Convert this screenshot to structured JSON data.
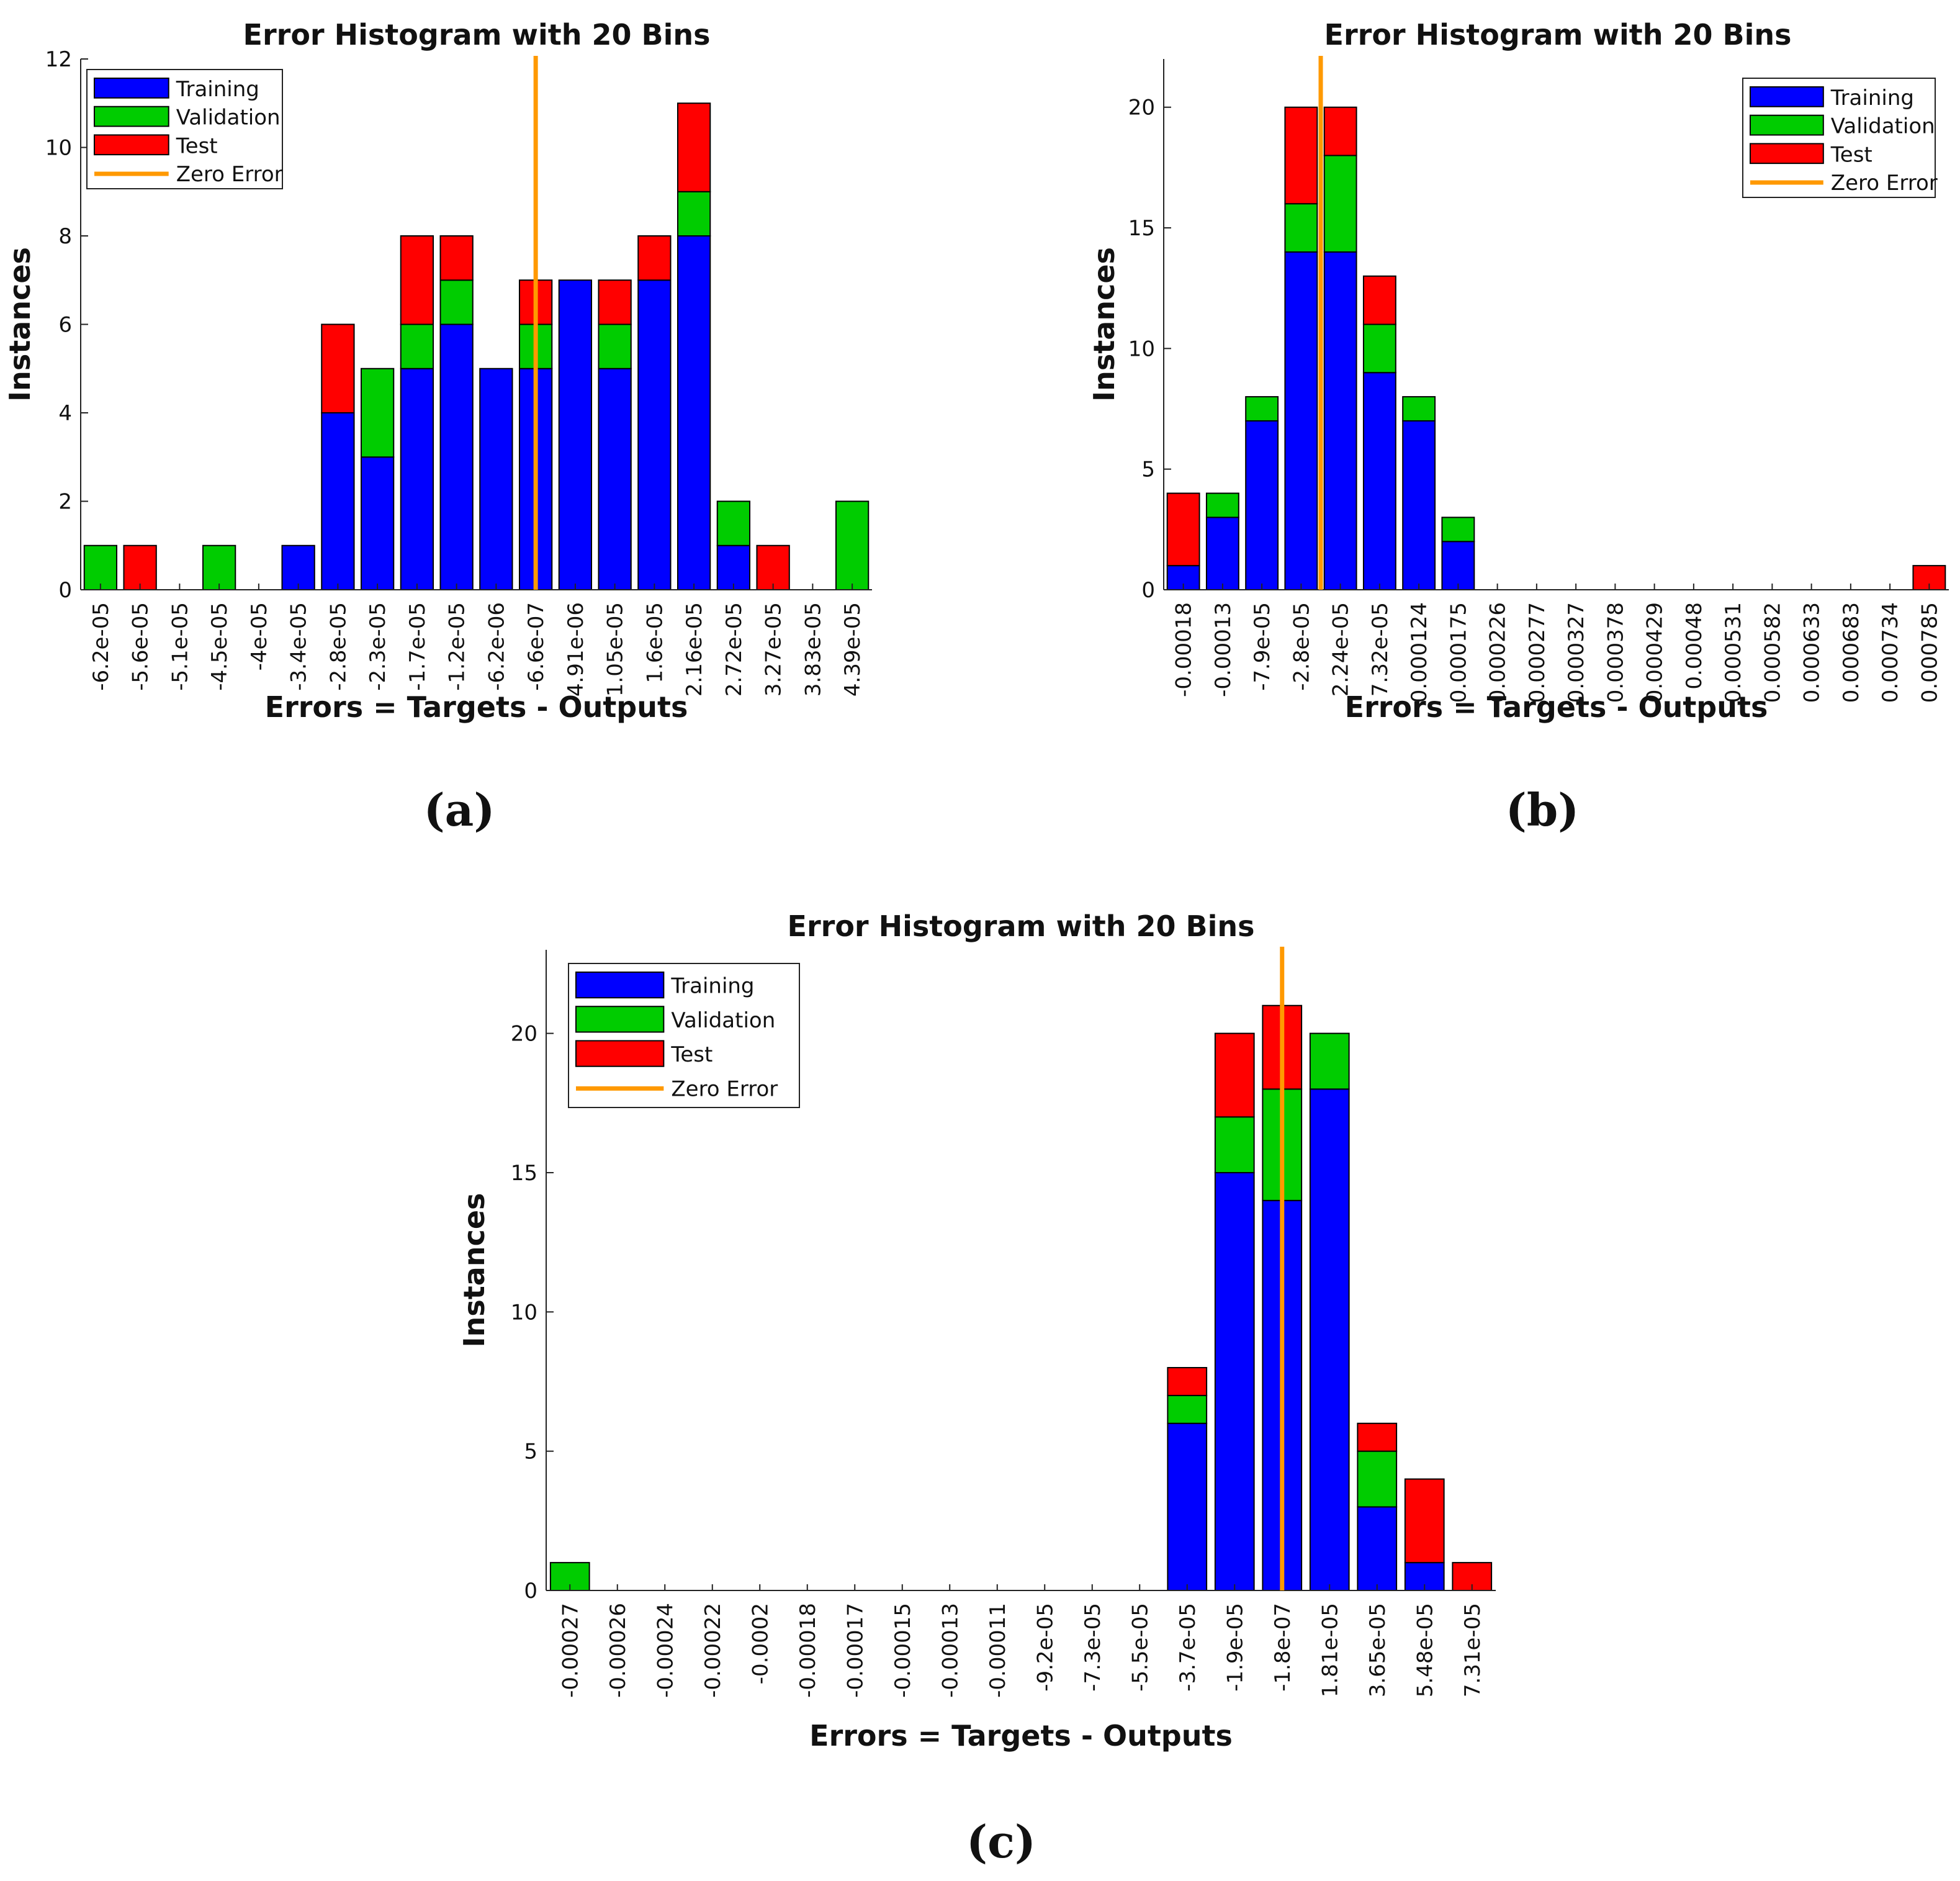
{
  "figure": {
    "captions": [
      "(a)",
      "(b)",
      "(c)"
    ]
  },
  "colors": {
    "training": "#0000ff",
    "validation": "#00cc00",
    "test": "#ff0000",
    "zero_error": "#ff9900"
  },
  "chart_data": [
    {
      "id": "a",
      "type": "bar",
      "stacked": true,
      "title": "Error Histogram with 20 Bins",
      "xlabel": "Errors = Targets - Outputs",
      "ylabel": "Instances",
      "ylim": [
        0,
        12
      ],
      "yticks": [
        0,
        2,
        4,
        6,
        8,
        10,
        12
      ],
      "legend_position": "top-left",
      "legend": [
        "Training",
        "Validation",
        "Test",
        "Zero Error"
      ],
      "categories": [
        "-6.2e-05",
        "-5.6e-05",
        "-5.1e-05",
        "-4.5e-05",
        "-4e-05",
        "-3.4e-05",
        "-2.8e-05",
        "-2.3e-05",
        "-1.7e-05",
        "-1.2e-05",
        "-6.2e-06",
        "-6.6e-07",
        "4.91e-06",
        "1.05e-05",
        "1.6e-05",
        "2.16e-05",
        "2.72e-05",
        "3.27e-05",
        "3.83e-05",
        "4.39e-05"
      ],
      "series": [
        {
          "name": "Training",
          "values": [
            0,
            0,
            0,
            0,
            0,
            1,
            4,
            3,
            5,
            6,
            5,
            5,
            7,
            5,
            7,
            8,
            1,
            0,
            0,
            0
          ]
        },
        {
          "name": "Validation",
          "values": [
            1,
            0,
            0,
            1,
            0,
            0,
            0,
            2,
            1,
            1,
            0,
            1,
            0,
            1,
            0,
            1,
            1,
            0,
            0,
            2
          ]
        },
        {
          "name": "Test",
          "values": [
            0,
            1,
            0,
            0,
            0,
            0,
            2,
            0,
            2,
            1,
            0,
            1,
            0,
            1,
            1,
            2,
            0,
            1,
            0,
            0
          ]
        }
      ],
      "zero_error_bin": 11
    },
    {
      "id": "b",
      "type": "bar",
      "stacked": true,
      "title": "Error Histogram with 20 Bins",
      "xlabel": "Errors = Targets - Outputs",
      "ylabel": "Instances",
      "ylim": [
        0,
        22
      ],
      "yticks": [
        0,
        5,
        10,
        15,
        20
      ],
      "legend_position": "top-right",
      "legend": [
        "Training",
        "Validation",
        "Test",
        "Zero Error"
      ],
      "categories": [
        "-0.00018",
        "-0.00013",
        "-7.9e-05",
        "-2.8e-05",
        "2.24e-05",
        "7.32e-05",
        "0.000124",
        "0.000175",
        "0.000226",
        "0.000277",
        "0.000327",
        "0.000378",
        "0.000429",
        "0.00048",
        "0.000531",
        "0.000582",
        "0.000633",
        "0.000683",
        "0.000734",
        "0.000785"
      ],
      "series": [
        {
          "name": "Training",
          "values": [
            1,
            3,
            7,
            14,
            14,
            9,
            7,
            2,
            0,
            0,
            0,
            0,
            0,
            0,
            0,
            0,
            0,
            0,
            0,
            0
          ]
        },
        {
          "name": "Validation",
          "values": [
            0,
            1,
            1,
            2,
            4,
            2,
            1,
            1,
            0,
            0,
            0,
            0,
            0,
            0,
            0,
            0,
            0,
            0,
            0,
            0
          ]
        },
        {
          "name": "Test",
          "values": [
            3,
            0,
            0,
            4,
            2,
            2,
            0,
            0,
            0,
            0,
            0,
            0,
            0,
            0,
            0,
            0,
            0,
            0,
            0,
            1
          ]
        }
      ],
      "zero_error_bin": 3.5
    },
    {
      "id": "c",
      "type": "bar",
      "stacked": true,
      "title": "Error Histogram with 20 Bins",
      "xlabel": "Errors = Targets - Outputs",
      "ylabel": "Instances",
      "ylim": [
        0,
        23
      ],
      "yticks": [
        0,
        5,
        10,
        15,
        20
      ],
      "legend_position": "top-left",
      "legend": [
        "Training",
        "Validation",
        "Test",
        "Zero Error"
      ],
      "categories": [
        "-0.00027",
        "-0.00026",
        "-0.00024",
        "-0.00022",
        "-0.0002",
        "-0.00018",
        "-0.00017",
        "-0.00015",
        "-0.00013",
        "-0.00011",
        "-9.2e-05",
        "-7.3e-05",
        "-5.5e-05",
        "-3.7e-05",
        "-1.9e-05",
        "-1.8e-07",
        "1.81e-05",
        "3.65e-05",
        "5.48e-05",
        "7.31e-05"
      ],
      "series": [
        {
          "name": "Training",
          "values": [
            0,
            0,
            0,
            0,
            0,
            0,
            0,
            0,
            0,
            0,
            0,
            0,
            0,
            6,
            15,
            14,
            18,
            3,
            1,
            0
          ]
        },
        {
          "name": "Validation",
          "values": [
            1,
            0,
            0,
            0,
            0,
            0,
            0,
            0,
            0,
            0,
            0,
            0,
            0,
            1,
            2,
            4,
            2,
            2,
            0,
            0
          ]
        },
        {
          "name": "Test",
          "values": [
            0,
            0,
            0,
            0,
            0,
            0,
            0,
            0,
            0,
            0,
            0,
            0,
            0,
            1,
            3,
            3,
            0,
            1,
            3,
            1
          ]
        }
      ],
      "zero_error_bin": 15
    }
  ]
}
